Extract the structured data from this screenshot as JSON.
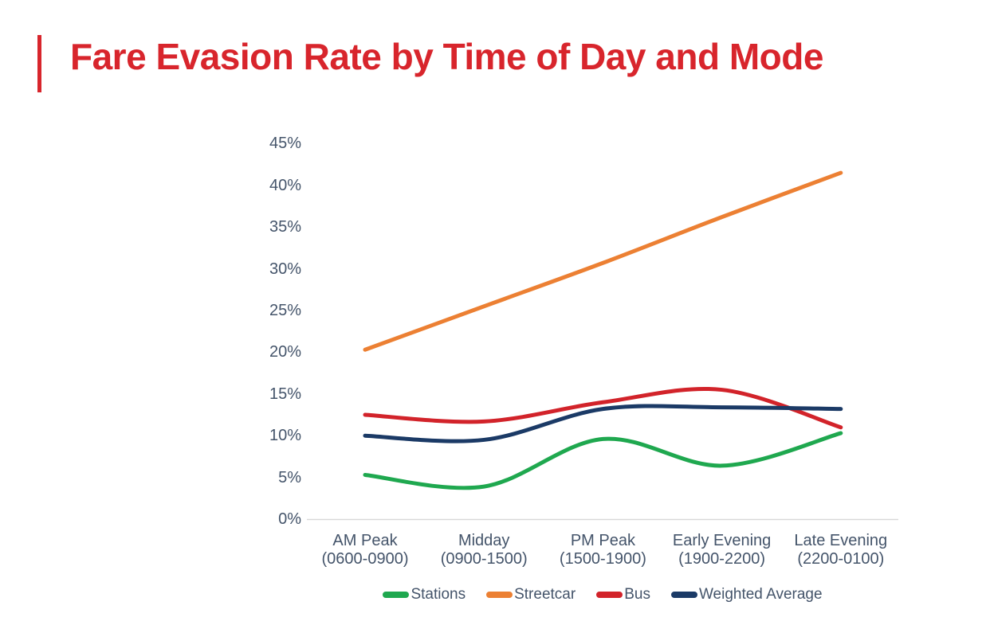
{
  "page": {
    "title": "Fare Evasion Rate by Time of Day and Mode"
  },
  "styles": {
    "title_color": "#D8252C",
    "accent_color": "#D8252C",
    "axis_text_color": "#44546A",
    "axis_line_color": "#D9D9D9",
    "background": "#FFFFFF"
  },
  "chart_data": {
    "type": "line",
    "title": "Fare Evasion Rate by Time of Day and Mode",
    "xlabel": "",
    "ylabel": "",
    "categories": [
      "AM Peak",
      "Midday",
      "PM Peak",
      "Early Evening",
      "Late Evening"
    ],
    "category_sublabels": [
      "(0600-0900)",
      "(0900-1500)",
      "(1500-1900)",
      "(1900-2200)",
      "(2200-0100)"
    ],
    "series": [
      {
        "name": "Stations",
        "color": "#1FA84F",
        "values": [
          5.3,
          3.9,
          9.6,
          6.4,
          10.3
        ]
      },
      {
        "name": "Streetcar",
        "color": "#EC8033",
        "values": [
          20.3,
          25.5,
          30.7,
          36.2,
          41.5
        ]
      },
      {
        "name": "Bus",
        "color": "#D2232A",
        "values": [
          12.5,
          11.7,
          14.0,
          15.5,
          11.0
        ]
      },
      {
        "name": "Weighted Average",
        "color": "#1B3A66",
        "values": [
          10.0,
          9.5,
          13.2,
          13.4,
          13.2
        ]
      }
    ],
    "ylim": [
      0,
      45
    ],
    "ytick_step": 5,
    "ytick_suffix": "%",
    "grid": false,
    "smooth": true,
    "legend_position": "bottom"
  }
}
